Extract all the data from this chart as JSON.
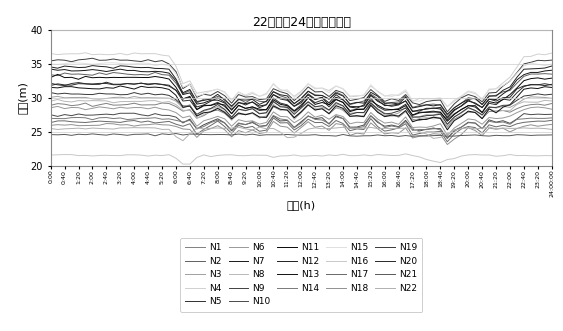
{
  "title": "22个节点24小时压力变化",
  "xlabel": "时间(h)",
  "ylabel": "压力(m)",
  "ylim": [
    20,
    40
  ],
  "yticks": [
    20,
    25,
    30,
    35,
    40
  ],
  "nodes": [
    "N1",
    "N2",
    "N3",
    "N4",
    "N5",
    "N6",
    "N7",
    "N8",
    "N9",
    "N10",
    "N11",
    "N12",
    "N13",
    "N14",
    "N15",
    "N16",
    "N17",
    "N18",
    "N19",
    "N20",
    "N21",
    "N22"
  ],
  "colors": {
    "N1": "#808080",
    "N2": "#606060",
    "N3": "#a0a0a0",
    "N4": "#d0d0d0",
    "N5": "#303030",
    "N6": "#989898",
    "N7": "#181818",
    "N8": "#b8b8b8",
    "N9": "#404040",
    "N10": "#484848",
    "N11": "#080808",
    "N12": "#202020",
    "N13": "#101010",
    "N14": "#787878",
    "N15": "#e0e0e0",
    "N16": "#c8c8c8",
    "N17": "#686868",
    "N18": "#909090",
    "N19": "#383838",
    "N20": "#282828",
    "N21": "#585858",
    "N22": "#b0b0b0"
  },
  "time_labels": [
    "0:00",
    "0:40",
    "1:20",
    "2:00",
    "2:40",
    "3:20",
    "4:00",
    "4:40",
    "5:20",
    "6:00",
    "6:40",
    "7:20",
    "8:00",
    "8:40",
    "9:20",
    "10:00",
    "10:40",
    "11:20",
    "12:00",
    "12:40",
    "13:20",
    "14:00",
    "14:40",
    "15:20",
    "16:00",
    "16:40",
    "17:20",
    "18:00",
    "18:40",
    "19:20",
    "20:00",
    "20:40",
    "21:20",
    "22:00",
    "22:40",
    "23:20",
    "24:00:00"
  ],
  "base_pressures_night": {
    "N1": 29.0,
    "N2": 33.5,
    "N3": 30.0,
    "N4": 36.5,
    "N5": 32.0,
    "N6": 28.5,
    "N7": 34.0,
    "N8": 29.5,
    "N9": 35.5,
    "N10": 27.5,
    "N11": 33.0,
    "N12": 34.5,
    "N13": 31.5,
    "N14": 27.0,
    "N15": 35.0,
    "N16": 21.5,
    "N17": 26.5,
    "N18": 26.0,
    "N19": 30.5,
    "N20": 32.0,
    "N21": 24.5,
    "N22": 25.5
  },
  "base_pressures_day": {
    "N1": 27.5,
    "N2": 29.5,
    "N3": 28.0,
    "N4": 30.5,
    "N5": 28.5,
    "N6": 26.5,
    "N7": 29.0,
    "N8": 27.5,
    "N9": 30.0,
    "N10": 26.0,
    "N11": 28.5,
    "N12": 29.5,
    "N13": 27.5,
    "N14": 26.0,
    "N15": 30.5,
    "N16": 21.0,
    "N17": 25.5,
    "N18": 25.0,
    "N19": 28.0,
    "N20": 29.0,
    "N21": 24.0,
    "N22": 24.5
  }
}
